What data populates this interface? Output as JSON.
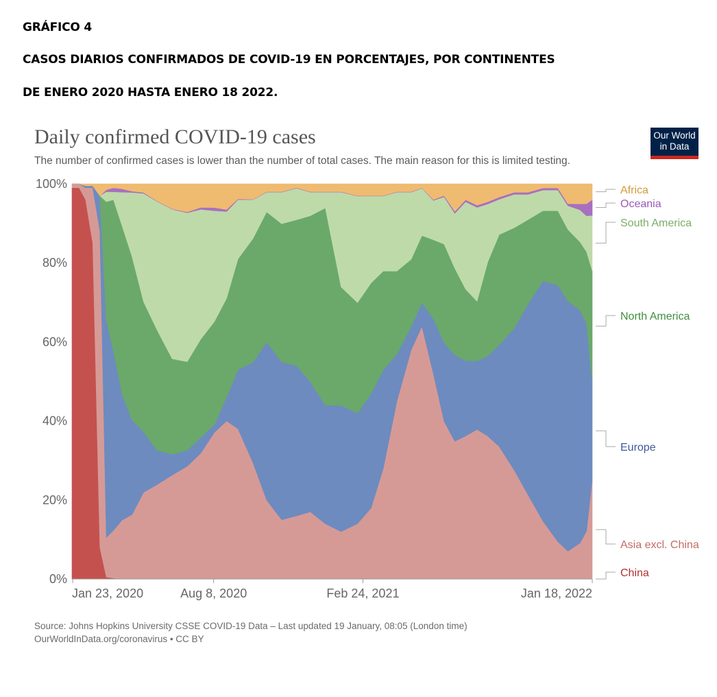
{
  "document": {
    "heading": "GRÁFICO 4",
    "subheading_1": "CASOS DIARIOS CONFIRMADOS DE COVID-19 EN PORCENTAJES, POR CONTINENTES",
    "subheading_2": "DE ENERO 2020 HASTA ENERO 18 2022."
  },
  "logo": {
    "line1": "Our World",
    "line2": "in Data",
    "bg_color": "#002147",
    "accent_color": "#ce261e"
  },
  "footer": {
    "source": "Source: Johns Hopkins University CSSE COVID-19 Data – Last updated 19 January, 08:05 (London time)",
    "license": "OurWorldInData.org/coronavirus • CC BY"
  },
  "chart_data": {
    "type": "area",
    "stacked": true,
    "normalized_percent": true,
    "title": "Daily confirmed COVID-19 cases",
    "subtitle": "The number of confirmed cases is lower than the number of total cases. The main reason for this is limited testing.",
    "xlabel": "",
    "ylabel": "",
    "x_range": [
      "2020-01-22",
      "2022-01-18"
    ],
    "y_range": [
      0,
      100
    ],
    "x_ticks": [
      "Jan 23, 2020",
      "Aug 8, 2020",
      "Feb 24, 2021",
      "Jan 18, 2022"
    ],
    "y_ticks": [
      "0%",
      "20%",
      "40%",
      "60%",
      "80%",
      "100%"
    ],
    "grid": "horizontal dashed",
    "legend": "right, labels at series end",
    "x": [
      "2020-01-22",
      "2020-02-01",
      "2020-02-10",
      "2020-02-20",
      "2020-03-01",
      "2020-03-10",
      "2020-03-20",
      "2020-04-01",
      "2020-04-15",
      "2020-05-01",
      "2020-05-20",
      "2020-06-10",
      "2020-07-01",
      "2020-07-20",
      "2020-08-08",
      "2020-08-25",
      "2020-09-10",
      "2020-10-01",
      "2020-10-20",
      "2020-11-10",
      "2020-12-01",
      "2020-12-20",
      "2021-01-10",
      "2021-02-01",
      "2021-02-24",
      "2021-03-15",
      "2021-04-01",
      "2021-04-20",
      "2021-05-10",
      "2021-05-25",
      "2021-06-10",
      "2021-06-25",
      "2021-07-10",
      "2021-07-25",
      "2021-08-10",
      "2021-08-25",
      "2021-09-10",
      "2021-10-01",
      "2021-10-20",
      "2021-11-10",
      "2021-12-01",
      "2021-12-15",
      "2022-01-01",
      "2022-01-10",
      "2022-01-18"
    ],
    "series": [
      {
        "name": "China",
        "color": "#c4514e",
        "values": [
          99,
          99,
          96,
          85,
          8,
          0.5,
          0.2,
          0,
          0,
          0,
          0,
          0,
          0,
          0,
          0,
          0,
          0,
          0,
          0,
          0,
          0,
          0,
          0,
          0,
          0,
          0,
          0,
          0,
          0,
          0,
          0,
          0,
          0,
          0,
          0,
          0,
          0,
          0,
          0,
          0,
          0,
          0,
          0,
          0,
          0
        ]
      },
      {
        "name": "Asia excl. China",
        "color": "#d69a96",
        "values": [
          1,
          1,
          3,
          14,
          80,
          10,
          12,
          14,
          15,
          20,
          22,
          25,
          28,
          32,
          37,
          40,
          38,
          30,
          20,
          15,
          16,
          17,
          14,
          12,
          14,
          18,
          28,
          45,
          58,
          64,
          52,
          40,
          35,
          36,
          35,
          32,
          30,
          26,
          20,
          14,
          9,
          7,
          9,
          12,
          25
        ]
      },
      {
        "name": "Europe",
        "color": "#6d8bbf",
        "values": [
          0,
          0,
          0.5,
          0.5,
          9,
          55,
          45,
          30,
          22,
          14,
          8,
          5,
          4,
          4,
          2,
          6,
          15,
          26,
          40,
          40,
          38,
          33,
          30,
          32,
          28,
          29,
          25,
          12,
          6,
          6,
          14,
          20,
          22,
          19,
          16,
          18,
          23,
          34,
          45,
          58,
          62,
          63,
          58,
          52,
          25
        ]
      },
      {
        "name": "North America",
        "color": "#6aa96a",
        "values": [
          0,
          0,
          0,
          0,
          0,
          30,
          38,
          40,
          38,
          30,
          28,
          23,
          22,
          25,
          26,
          25,
          28,
          32,
          33,
          35,
          37,
          42,
          50,
          30,
          28,
          28,
          25,
          21,
          17,
          17,
          20,
          25,
          22,
          18,
          14,
          21,
          25,
          24,
          20,
          17,
          18,
          18,
          17,
          18,
          28
        ]
      },
      {
        "name": "South America",
        "color": "#bedaa9",
        "values": [
          0,
          0,
          0,
          0,
          0,
          2.5,
          2,
          8,
          15,
          25,
          30,
          36,
          37,
          33,
          28,
          22,
          15,
          10,
          5,
          8,
          8,
          6,
          4,
          24,
          27,
          22,
          19,
          20,
          17,
          12,
          10,
          12,
          14,
          22,
          22,
          13,
          8,
          8,
          6,
          5,
          5,
          6,
          8,
          9,
          14
        ]
      },
      {
        "name": "Oceania",
        "color": "#a86fc0",
        "values": [
          0,
          0,
          0,
          0,
          0,
          0.5,
          1,
          0.8,
          0.3,
          0.2,
          0.1,
          0.1,
          0.2,
          0.5,
          0.8,
          0.5,
          0.2,
          0.1,
          0.1,
          0.1,
          0.1,
          0.1,
          0.1,
          0.1,
          0.1,
          0.1,
          0.1,
          0.1,
          0.1,
          0.1,
          0.2,
          0.3,
          0.5,
          0.5,
          0.5,
          0.5,
          0.5,
          0.5,
          0.5,
          0.5,
          0.5,
          0.5,
          1.5,
          3,
          4
        ]
      },
      {
        "name": "Africa",
        "color": "#efbb70",
        "values": [
          0,
          0,
          0.5,
          0.5,
          3,
          1.5,
          1,
          1.2,
          1.7,
          2,
          4,
          6,
          7,
          6,
          6,
          6.5,
          3.8,
          4,
          2,
          2,
          1,
          2,
          2,
          2,
          3,
          3,
          3,
          2,
          2,
          1,
          4,
          3,
          7,
          4,
          5,
          4,
          3,
          2,
          2,
          1,
          1,
          5,
          5,
          5,
          4
        ]
      }
    ]
  }
}
